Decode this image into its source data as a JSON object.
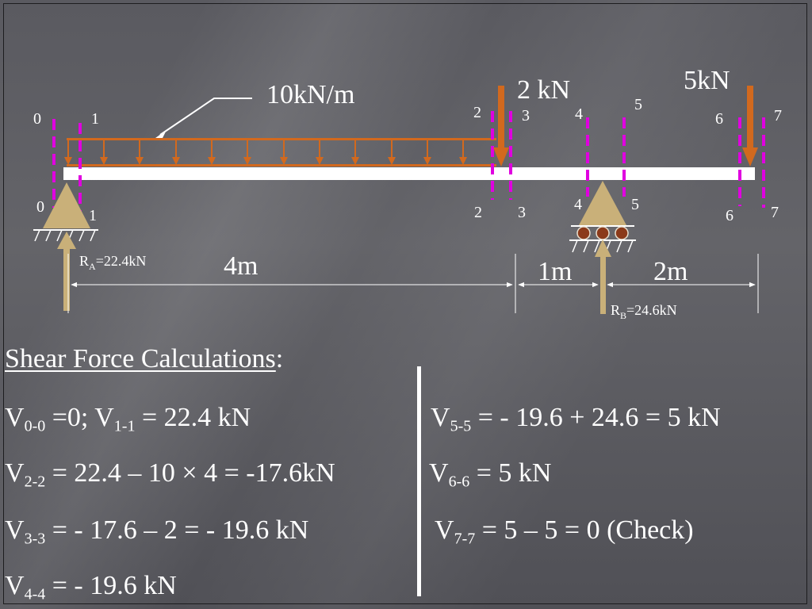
{
  "diagram": {
    "loads": {
      "udl_label": "10kN/m",
      "point_load_1_label": "2 kN",
      "point_load_2_label": "5kN"
    },
    "sections_top": [
      "0",
      "1",
      "2",
      "3",
      "4",
      "5",
      "6",
      "7"
    ],
    "sections_bottom": [
      "0",
      "1",
      "2",
      "3",
      "4",
      "5",
      "6",
      "7"
    ],
    "reactions": {
      "a_prefix": "R",
      "a_sub": "A",
      "a_value": "=22.4kN",
      "b_prefix": "R",
      "b_sub": "B",
      "b_value": "=24.6kN"
    },
    "dimensions": {
      "span_1": "4m",
      "span_2": "1m",
      "span_3": "2m"
    },
    "colors": {
      "load_arrow": "#d2691e",
      "section_line": "#e000e0",
      "support": "#c9b079",
      "reaction_arrow": "#c9b079",
      "beam": "#ffffff",
      "roller": "#8b3a1a"
    }
  },
  "calculations": {
    "title": "Shear Force Calculations",
    "title_colon": ":",
    "left": [
      {
        "v": "V",
        "sub": "0-0",
        "eq": " =0;  V",
        "sub2": "1-1",
        "eq2": " = 22.4 kN"
      },
      {
        "v": "V",
        "sub": "2-2",
        "eq": " = 22.4 – 10 × 4 = -17.6kN"
      },
      {
        "v": "V",
        "sub": "3-3",
        "eq": " = - 17.6 – 2 = - 19.6 kN"
      },
      {
        "v": "V",
        "sub": "4-4",
        "eq": " = - 19.6 kN"
      }
    ],
    "right": [
      {
        "v": "V",
        "sub": "5-5",
        "eq": " = - 19.6 + 24.6 = 5 kN"
      },
      {
        "v": "V",
        "sub": "6-6",
        "eq": " = 5 kN"
      },
      {
        "v": "V",
        "sub": "7-7",
        "eq": " = 5 – 5 = 0 (Check)"
      }
    ]
  }
}
